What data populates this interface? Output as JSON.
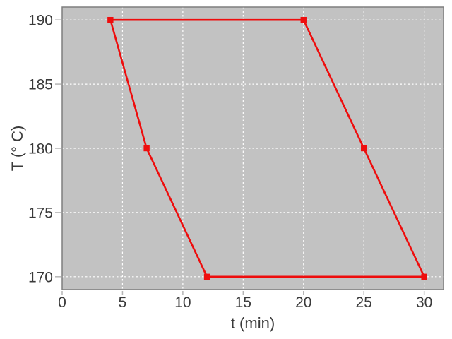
{
  "chart_data": {
    "type": "line",
    "title": "",
    "xlabel": "t (min)",
    "ylabel": "T (° C)",
    "xlim": [
      0,
      31.6
    ],
    "ylim": [
      169,
      191
    ],
    "xticks": [
      0,
      5,
      10,
      15,
      20,
      25,
      30
    ],
    "yticks": [
      170,
      175,
      180,
      185,
      190
    ],
    "grid": true,
    "grid_style": "white-dashed",
    "legend_position": "none",
    "series": [
      {
        "name": "temperature-cycle",
        "marker": "square",
        "color": "#ee0d0d",
        "points": [
          [
            4,
            190
          ],
          [
            20,
            190
          ],
          [
            25,
            180
          ],
          [
            30,
            170
          ],
          [
            12,
            170
          ],
          [
            7,
            180
          ],
          [
            4,
            190
          ]
        ]
      }
    ],
    "style": {
      "panel_bg": "#c2c2c2",
      "outer_bg": "#ffffff",
      "grid_color": "#ffffff",
      "border_color": "#7e7e7e",
      "tick_color": "#b5b5b5",
      "text_color": "#3a3a3a"
    }
  }
}
